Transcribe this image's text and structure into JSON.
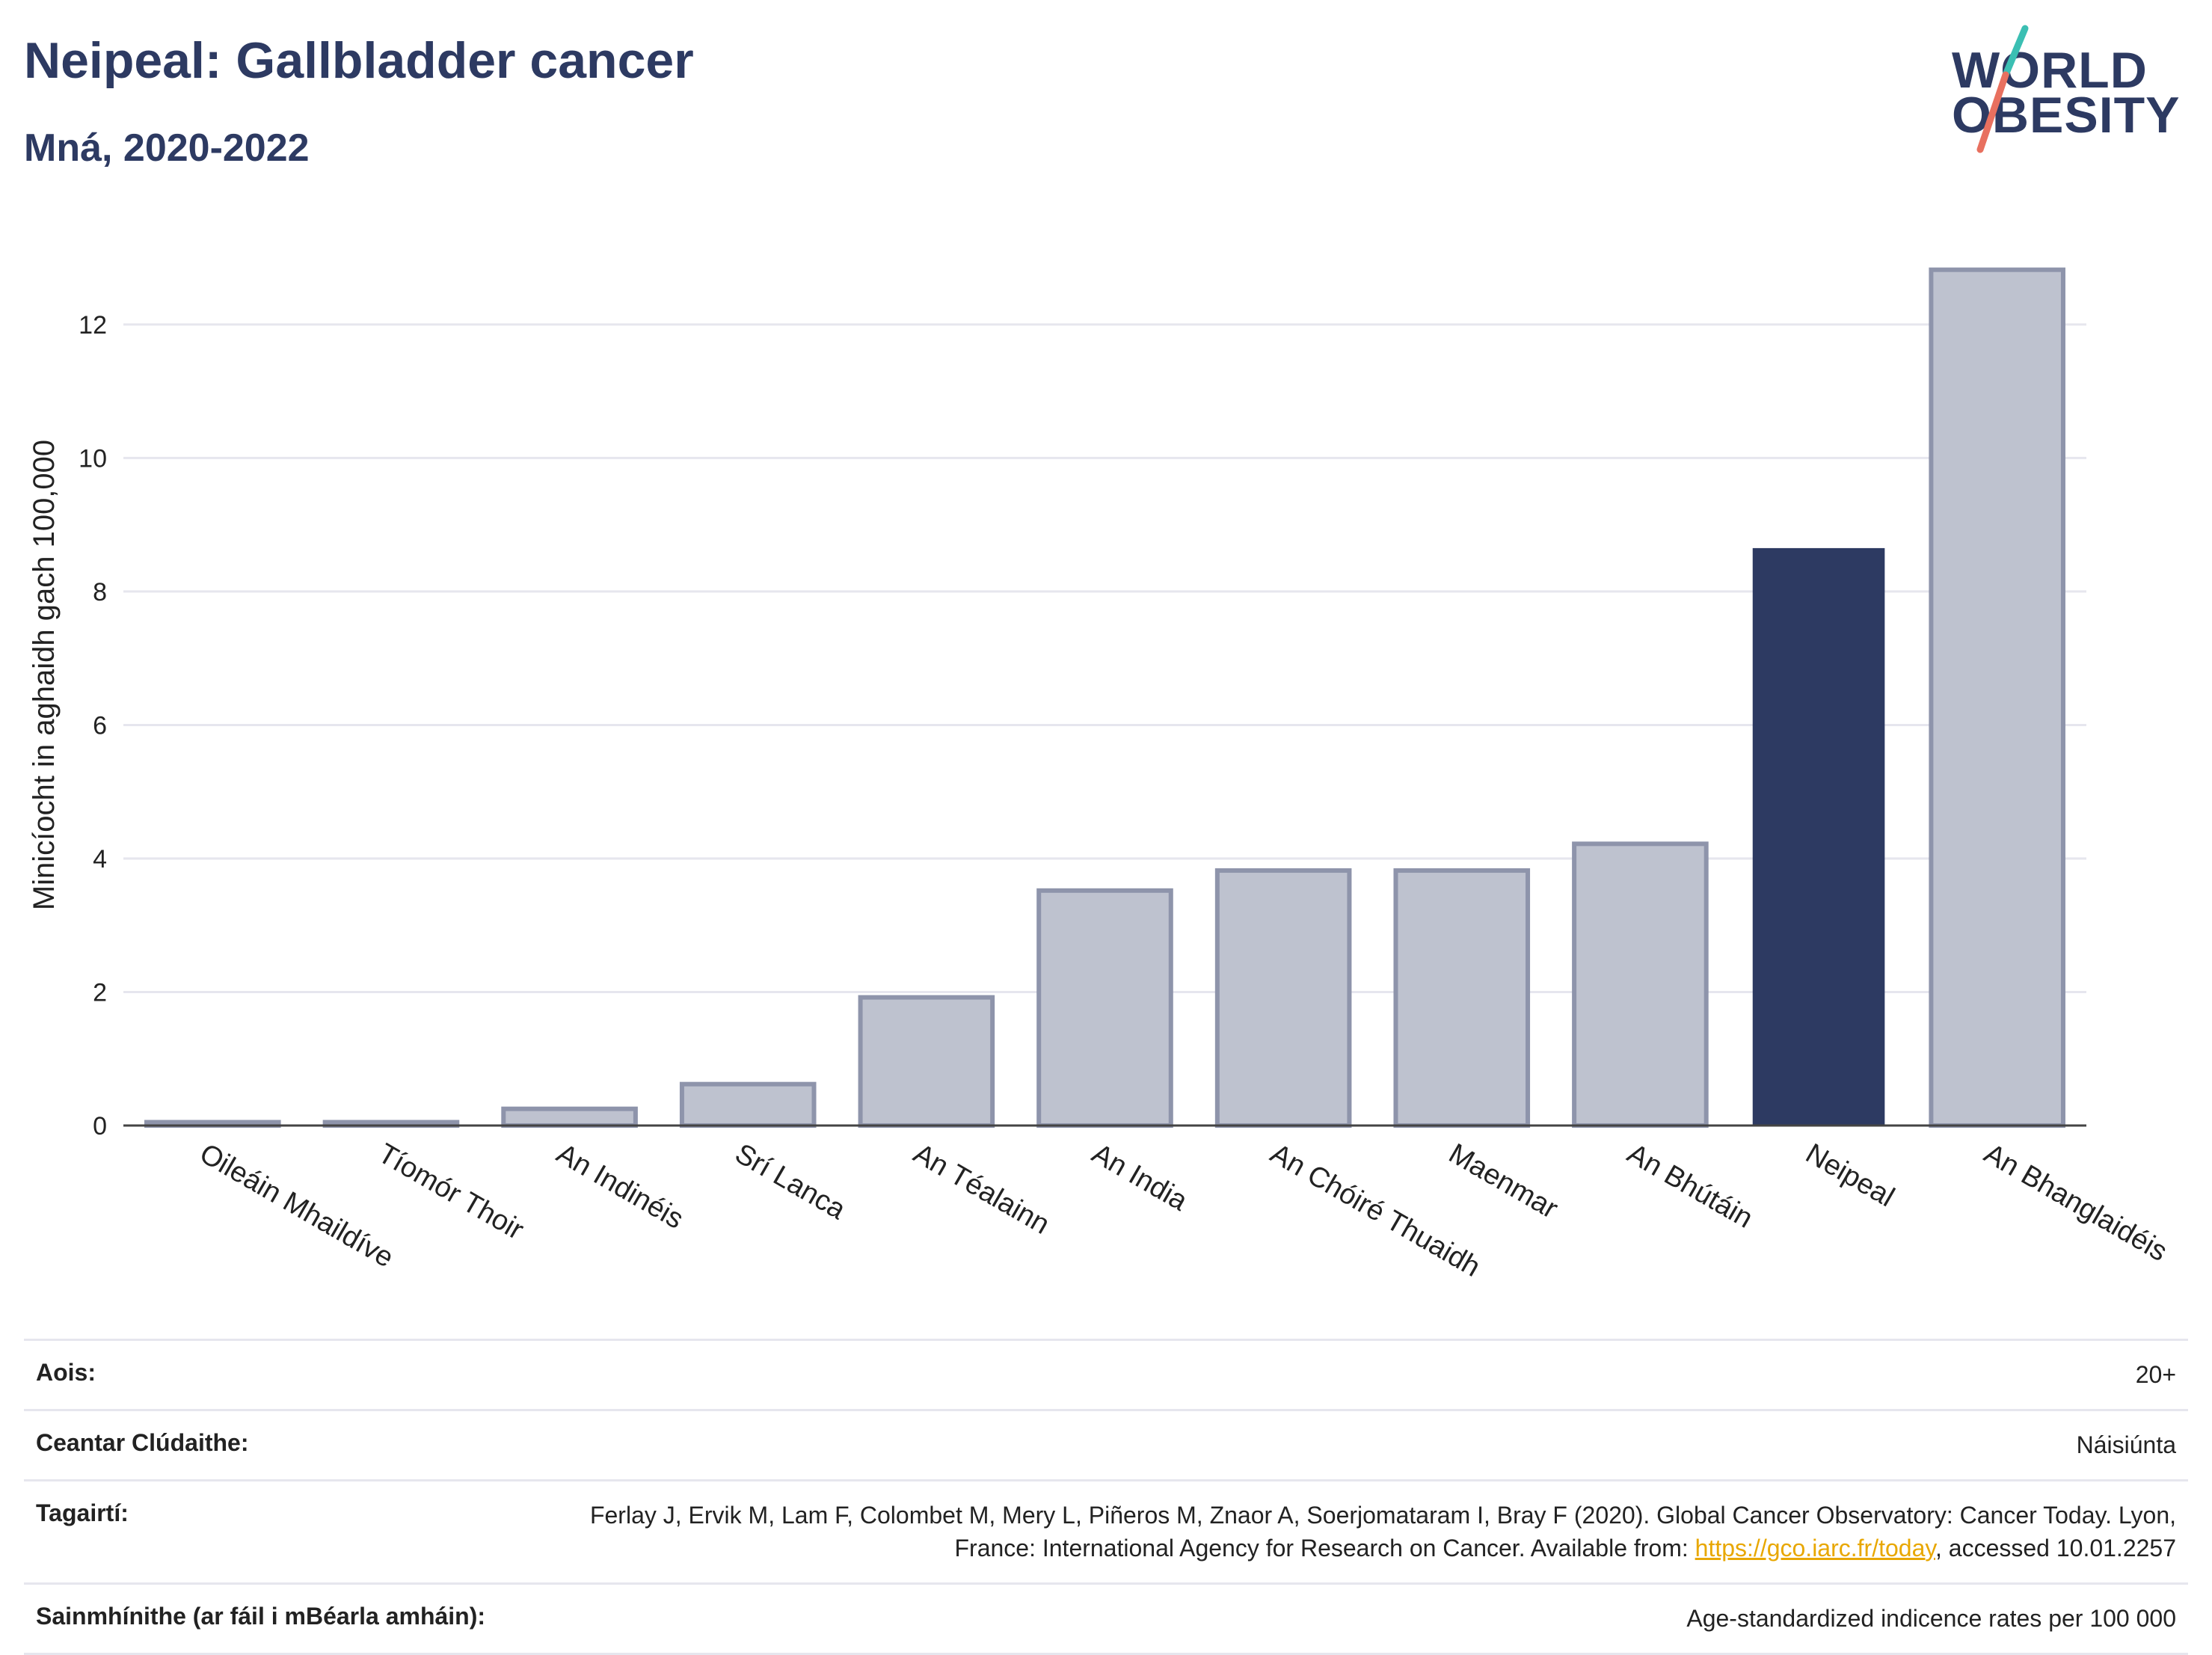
{
  "header": {
    "title": "Neipeal: Gallbladder cancer",
    "subtitle": "Mná, 2020-2022"
  },
  "logo": {
    "line1": "WORLD",
    "line2": "OBESITY",
    "accent_teal": "#3bbfb3",
    "accent_red": "#e8705f"
  },
  "chart_data": {
    "type": "bar",
    "categories": [
      "Oileáin Mhaildíve",
      "Tíomór Thoir",
      "An Indinéis",
      "Srí Lanca",
      "An Téalainn",
      "An India",
      "An Chóiré Thuaidh",
      "Maenmar",
      "An Bhútáin",
      "Neipeal",
      "An Bhanglaidéis"
    ],
    "values": [
      0.05,
      0.05,
      0.25,
      0.62,
      1.92,
      3.52,
      3.82,
      3.82,
      4.22,
      8.65,
      12.82
    ],
    "highlight": "Neipeal",
    "ylabel": "Minicíocht in aghaidh gach 100,000",
    "ylim": [
      0,
      13.5
    ],
    "yticks": [
      0,
      2,
      4,
      6,
      8,
      10,
      12
    ],
    "grid": true,
    "colors": {
      "highlight": "#2d3a62",
      "other_fill": "#bec2cf",
      "other_stroke": "#8e94ab"
    }
  },
  "footer": {
    "rows": [
      {
        "label": "Aois:",
        "value": "20+"
      },
      {
        "label": "Ceantar Clúdaithe:",
        "value": "Náisiúnta"
      },
      {
        "label": "Tagairtí:",
        "value_pre": "Ferlay J, Ervik M, Lam F, Colombet M, Mery L, Piñeros M, Znaor A, Soerjomataram I, Bray F (2020). Global Cancer Observatory: Cancer Today. Lyon, France: International Agency for Research on Cancer. Available from: ",
        "link": "https://gco.iarc.fr/today",
        "value_post": ", accessed 10.01.2257"
      },
      {
        "label": "Sainmhínithe (ar fáil i mBéarla amháin):",
        "value": "Age-standardized indicence rates per 100 000"
      }
    ]
  }
}
